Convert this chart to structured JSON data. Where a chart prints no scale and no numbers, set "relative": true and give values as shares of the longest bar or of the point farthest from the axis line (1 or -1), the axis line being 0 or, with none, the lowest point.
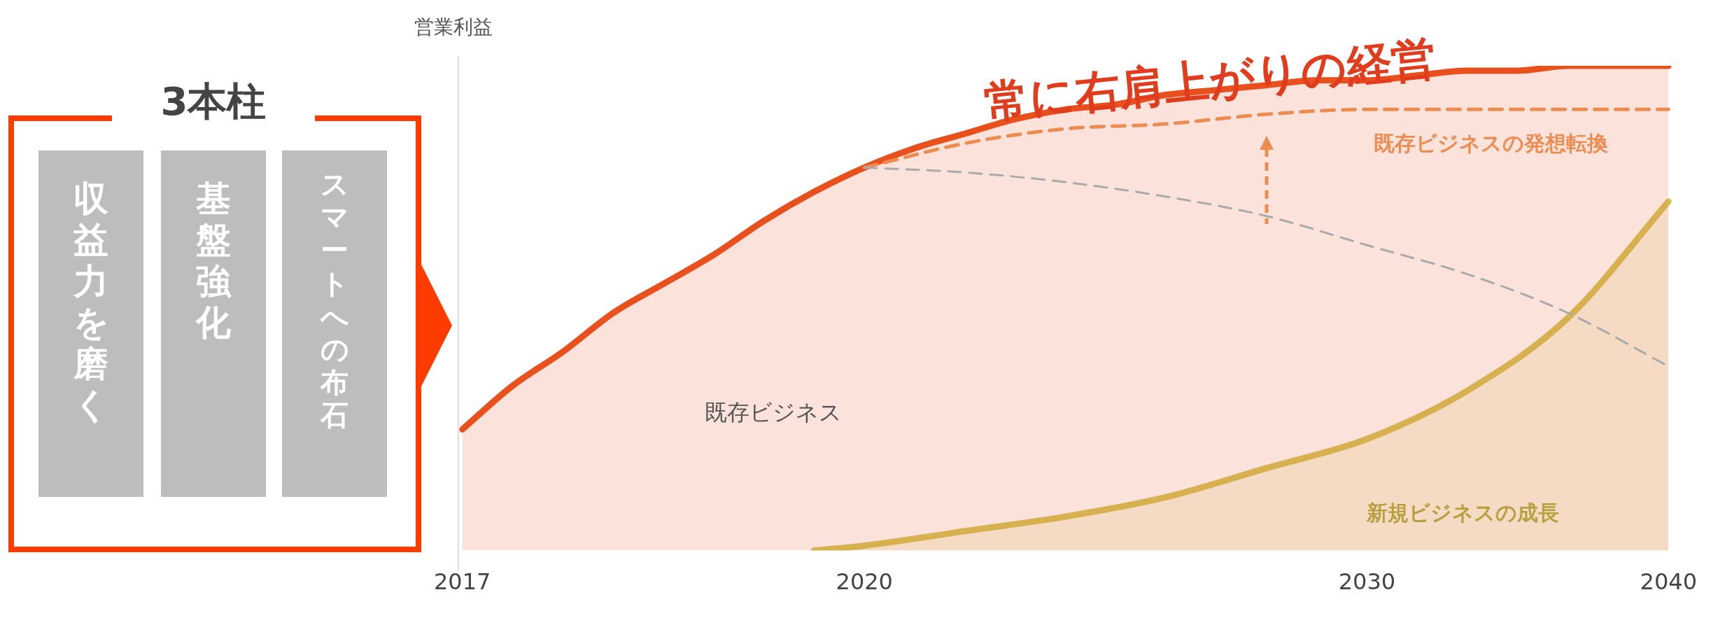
{
  "chart_data": [
    {
      "type": "other",
      "title": "3本柱",
      "annotations": [
        "収益力を磨く",
        "基盤強化",
        "スマートへの布石"
      ]
    },
    {
      "type": "line",
      "relative": true,
      "ylabel": "営業利益",
      "annotations": [
        "既存ビジネス"
      ],
      "legend": false,
      "grid": false,
      "tick_labels": "x",
      "marker": "none",
      "categories": [
        "2017",
        null,
        null,
        null,
        null,
        null,
        null,
        null,
        "2020",
        null,
        null,
        null,
        null,
        null,
        null,
        null,
        null,
        null,
        "2030",
        null,
        null,
        null,
        null,
        null,
        "2040"
      ],
      "series": [
        {
          "name": "常に右肩上がりの経営",
          "type": "area",
          "color": "#e8501e",
          "values": [
            0.25,
            0.34,
            0.41,
            0.49,
            0.55,
            0.61,
            0.68,
            0.74,
            0.79,
            0.83,
            0.86,
            0.89,
            0.91,
            0.92,
            0.94,
            0.95,
            0.96,
            0.97,
            0.97,
            0.98,
            0.99,
            0.99,
            1.0,
            1.0,
            1.0
          ]
        },
        {
          "type": "line",
          "line_style": "dashed",
          "color": "#aaaaaa",
          "values": [
            null,
            null,
            null,
            null,
            null,
            null,
            null,
            null,
            0.79,
            null,
            0.78,
            null,
            0.76,
            null,
            0.73,
            null,
            0.69,
            null,
            0.63,
            null,
            0.57,
            null,
            0.49,
            null,
            0.38
          ]
        },
        {
          "name": "既存ビジネスの発想転換",
          "type": "line",
          "line_style": "dashed",
          "color": "#ec8c50",
          "values": [
            null,
            null,
            null,
            null,
            null,
            null,
            null,
            null,
            0.79,
            null,
            0.84,
            null,
            0.87,
            null,
            0.88,
            null,
            0.9,
            null,
            0.91,
            null,
            0.91,
            null,
            0.91,
            null,
            0.91
          ]
        },
        {
          "name": "新規ビジネスの成長",
          "type": "area",
          "color": "#d4c45a",
          "values": [
            null,
            null,
            null,
            null,
            null,
            null,
            null,
            0.0,
            0.01,
            null,
            0.04,
            null,
            0.07,
            null,
            0.11,
            null,
            0.17,
            null,
            0.23,
            null,
            0.33,
            null,
            0.48,
            null,
            0.72
          ]
        }
      ]
    }
  ]
}
